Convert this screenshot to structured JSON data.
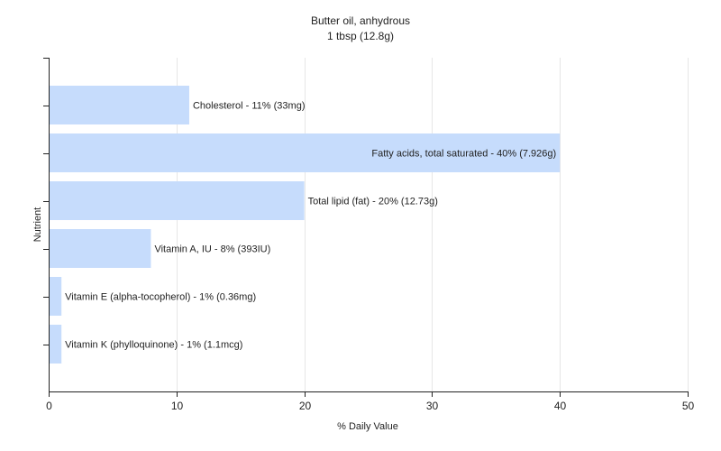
{
  "chart_data": {
    "type": "bar",
    "orientation": "horizontal",
    "title": "Butter oil, anhydrous",
    "subtitle": "1 tbsp (12.8g)",
    "xlabel": "% Daily Value",
    "ylabel": "Nutrient",
    "xlim": [
      0,
      50
    ],
    "xticks": [
      0,
      10,
      20,
      30,
      40,
      50
    ],
    "grid": true,
    "legend": "none",
    "bar_color": "#c6dcfc",
    "categories": [
      "Cholesterol",
      "Fatty acids, total saturated",
      "Total lipid (fat)",
      "Vitamin A, IU",
      "Vitamin E (alpha-tocopherol)",
      "Vitamin K (phylloquinone)"
    ],
    "values": [
      11,
      40,
      20,
      8,
      1,
      1
    ],
    "labels": [
      "Cholesterol - 11% (33mg)",
      "Fatty acids, total saturated - 40% (7.926g)",
      "Total lipid (fat) - 20% (12.73g)",
      "Vitamin A, IU - 8% (393IU)",
      "Vitamin E (alpha-tocopherol) - 1% (0.36mg)",
      "Vitamin K (phylloquinone) - 1% (1.1mcg)"
    ],
    "label_inside": [
      false,
      true,
      false,
      false,
      false,
      false
    ]
  }
}
